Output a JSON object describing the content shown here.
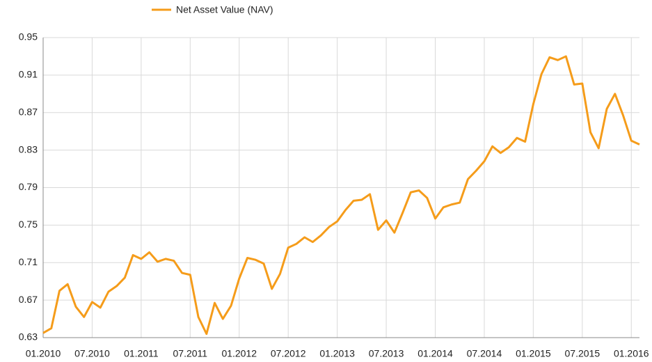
{
  "chart_data": {
    "type": "line",
    "categories": [
      "01.2010",
      null,
      null,
      null,
      null,
      null,
      "07.2010",
      null,
      null,
      null,
      null,
      null,
      "01.2011",
      null,
      null,
      null,
      null,
      null,
      "07.2011",
      null,
      null,
      null,
      null,
      null,
      "01.2012",
      null,
      null,
      null,
      null,
      null,
      "07.2012",
      null,
      null,
      null,
      null,
      null,
      "01.2013",
      null,
      null,
      null,
      null,
      null,
      "07.2013",
      null,
      null,
      null,
      null,
      null,
      "01.2014",
      null,
      null,
      null,
      null,
      null,
      "07.2014",
      null,
      null,
      null,
      null,
      null,
      "01.2015",
      null,
      null,
      null,
      null,
      null,
      "07.2015",
      null,
      null,
      null,
      null,
      null,
      "01.2016",
      null
    ],
    "series": [
      {
        "name": "Net Asset Value (NAV)",
        "color": "#f59c1a",
        "values": [
          0.635,
          0.64,
          0.68,
          0.687,
          0.663,
          0.652,
          0.668,
          0.662,
          0.679,
          0.685,
          0.694,
          0.718,
          0.714,
          0.721,
          0.711,
          0.714,
          0.712,
          0.699,
          0.697,
          0.652,
          0.634,
          0.667,
          0.65,
          0.664,
          0.693,
          0.715,
          0.713,
          0.709,
          0.682,
          0.698,
          0.726,
          0.73,
          0.737,
          0.732,
          0.739,
          0.748,
          0.754,
          0.766,
          0.776,
          0.777,
          0.783,
          0.745,
          0.755,
          0.742,
          0.763,
          0.785,
          0.787,
          0.779,
          0.757,
          0.769,
          0.772,
          0.774,
          0.799,
          0.808,
          0.818,
          0.834,
          0.827,
          0.833,
          0.843,
          0.839,
          0.879,
          0.911,
          0.929,
          0.926,
          0.93,
          0.9,
          0.901,
          0.849,
          0.832,
          0.874,
          0.89,
          0.867,
          0.84,
          0.836
        ]
      }
    ],
    "ylim": [
      0.63,
      0.95
    ],
    "yticks": [
      0.63,
      0.67,
      0.71,
      0.75,
      0.79,
      0.83,
      0.87,
      0.91,
      0.95
    ],
    "grid": true,
    "legend": "top"
  }
}
